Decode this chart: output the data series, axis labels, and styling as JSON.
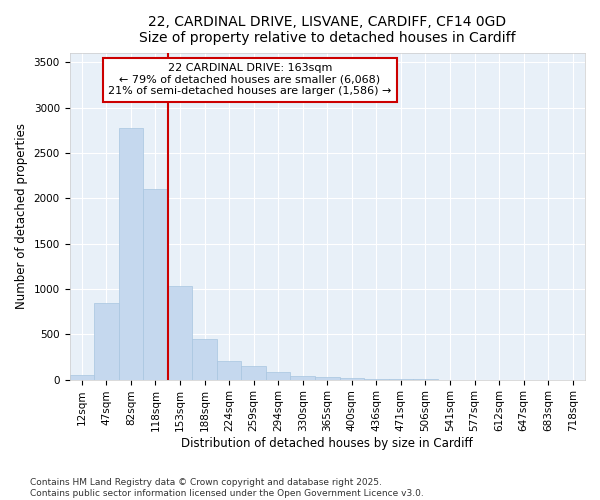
{
  "title_line1": "22, CARDINAL DRIVE, LISVANE, CARDIFF, CF14 0GD",
  "title_line2": "Size of property relative to detached houses in Cardiff",
  "xlabel": "Distribution of detached houses by size in Cardiff",
  "ylabel": "Number of detached properties",
  "bar_color": "#c5d8ee",
  "bar_edge_color": "#a8c5e0",
  "background_color": "#e8f0f8",
  "grid_color": "#ffffff",
  "annotation_box_color": "#cc0000",
  "vline_color": "#cc0000",
  "fig_background": "#ffffff",
  "categories": [
    "12sqm",
    "47sqm",
    "82sqm",
    "118sqm",
    "153sqm",
    "188sqm",
    "224sqm",
    "259sqm",
    "294sqm",
    "330sqm",
    "365sqm",
    "400sqm",
    "436sqm",
    "471sqm",
    "506sqm",
    "541sqm",
    "577sqm",
    "612sqm",
    "647sqm",
    "683sqm",
    "718sqm"
  ],
  "values": [
    55,
    850,
    2780,
    2100,
    1030,
    450,
    200,
    150,
    80,
    40,
    30,
    20,
    8,
    4,
    2,
    1,
    0,
    0,
    0,
    0,
    0
  ],
  "ylim": [
    0,
    3600
  ],
  "yticks": [
    0,
    500,
    1000,
    1500,
    2000,
    2500,
    3000,
    3500
  ],
  "annotation_line1": "22 CARDINAL DRIVE: 163sqm",
  "annotation_line2": "← 79% of detached houses are smaller (6,068)",
  "annotation_line3": "21% of semi-detached houses are larger (1,586) →",
  "vline_x_index": 3.5,
  "footer_line1": "Contains HM Land Registry data © Crown copyright and database right 2025.",
  "footer_line2": "Contains public sector information licensed under the Open Government Licence v3.0.",
  "title_fontsize": 10,
  "subtitle_fontsize": 9,
  "tick_fontsize": 7.5,
  "ylabel_fontsize": 8.5,
  "xlabel_fontsize": 8.5,
  "annotation_fontsize": 8,
  "footer_fontsize": 6.5
}
